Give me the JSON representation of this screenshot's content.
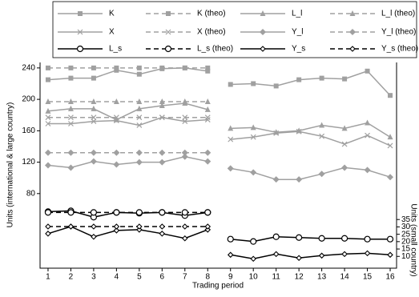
{
  "chart_data": {
    "type": "line",
    "x_label": "Trading period",
    "y_label": "Units (international & large country)",
    "y2_label": "Units (small country)",
    "x": [
      1,
      2,
      3,
      4,
      5,
      6,
      7,
      8,
      null,
      9,
      10,
      11,
      12,
      13,
      14,
      15,
      16
    ],
    "xlim": [
      0.65,
      16.28
    ],
    "xticks": [
      1,
      2,
      3,
      4,
      5,
      6,
      7,
      8,
      9,
      10,
      11,
      12,
      13,
      14,
      15,
      16
    ],
    "ylim": [
      -15,
      247
    ],
    "yticks": [
      80,
      120,
      160,
      200,
      240
    ],
    "y2lim": [
      2,
      141.5
    ],
    "y2ticks": [
      10,
      15,
      20,
      25,
      30,
      35
    ],
    "legend": "top",
    "series": [
      {
        "name": "K",
        "color": "#a0a0a0",
        "marker": "square",
        "dashed": false,
        "values": [
          225,
          227,
          227,
          237,
          232,
          239,
          240,
          236,
          null,
          219,
          220,
          217,
          225,
          227,
          226,
          236,
          205
        ]
      },
      {
        "name": "K (theo)",
        "color": "#a0a0a0",
        "marker": "square",
        "dashed": true,
        "values": [
          240,
          240,
          240,
          240,
          240,
          240,
          240,
          240,
          null,
          null,
          null,
          null,
          null,
          null,
          null,
          null,
          null
        ]
      },
      {
        "name": "L_l",
        "color": "#a0a0a0",
        "marker": "triangle",
        "dashed": false,
        "values": [
          185,
          188,
          188,
          174,
          188,
          192,
          195,
          187,
          null,
          163,
          164,
          158,
          160,
          167,
          163,
          170,
          152
        ]
      },
      {
        "name": "L_l (theo)",
        "color": "#a0a0a0",
        "marker": "triangle",
        "dashed": true,
        "values": [
          197,
          197,
          197,
          197,
          197,
          197,
          197,
          197,
          null,
          null,
          null,
          null,
          null,
          null,
          null,
          null,
          null
        ]
      },
      {
        "name": "X",
        "color": "#a0a0a0",
        "marker": "x",
        "dashed": false,
        "values": [
          169,
          169,
          172,
          173,
          167,
          177,
          172,
          174,
          null,
          149,
          152,
          157,
          159,
          153,
          143,
          154,
          141
        ]
      },
      {
        "name": "X (theo)",
        "color": "#a0a0a0",
        "marker": "x",
        "dashed": true,
        "values": [
          177,
          177,
          177,
          177,
          177,
          177,
          177,
          177,
          null,
          null,
          null,
          null,
          null,
          null,
          null,
          null,
          null
        ]
      },
      {
        "name": "Y_l",
        "color": "#a0a0a0",
        "marker": "diamond",
        "dashed": false,
        "values": [
          116,
          113,
          121,
          117,
          120,
          120,
          127,
          121,
          null,
          112,
          107,
          98,
          98,
          105,
          113,
          110,
          101
        ]
      },
      {
        "name": "Y_l (theo)",
        "color": "#a0a0a0",
        "marker": "diamond",
        "dashed": true,
        "values": [
          132,
          132,
          132,
          132,
          132,
          132,
          132,
          132,
          null,
          null,
          null,
          null,
          null,
          null,
          null,
          null,
          null
        ]
      },
      {
        "name": "L_s",
        "color": "#000000",
        "marker": "circle",
        "dashed": false,
        "values": [
          57,
          58,
          50,
          56,
          55,
          56,
          52,
          56,
          null,
          22,
          19,
          25,
          24,
          23,
          23,
          22,
          22
        ]
      },
      {
        "name": "L_s (theo)",
        "color": "#000000",
        "marker": "circle",
        "dashed": true,
        "values": [
          56,
          56,
          56,
          56,
          56,
          56,
          56,
          56,
          null,
          null,
          null,
          null,
          null,
          null,
          null,
          null,
          null
        ]
      },
      {
        "name": "Y_s",
        "color": "#000000",
        "marker": "hdiamond",
        "dashed": false,
        "values": [
          29,
          38,
          25,
          33,
          34,
          29,
          23,
          34,
          null,
          2,
          -3,
          3,
          -2,
          1,
          3,
          4,
          2
        ]
      },
      {
        "name": "Y_s (theo)",
        "color": "#000000",
        "marker": "hdiamond",
        "dashed": true,
        "values": [
          38,
          38,
          38,
          38,
          38,
          38,
          38,
          38,
          null,
          null,
          null,
          null,
          null,
          null,
          null,
          null,
          null
        ]
      }
    ]
  }
}
